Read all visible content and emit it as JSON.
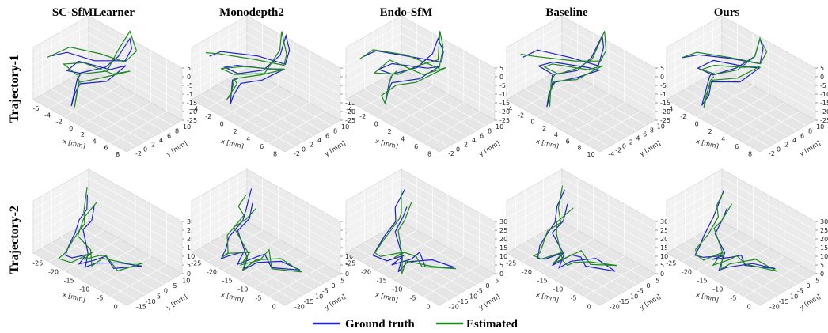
{
  "figure": {
    "column_titles": [
      "SC-SfMLearner",
      "Monodepth2",
      "Endo-SfM",
      "Baseline",
      "Ours"
    ],
    "row_titles": [
      "Trajectory-1",
      "Trajectory-2"
    ]
  },
  "legend": {
    "items": [
      {
        "label": "Ground truth",
        "color": "#1f1fcc"
      },
      {
        "label": "Estimated",
        "color": "#1a8a1a"
      }
    ]
  },
  "chart_data": [
    {
      "type": "line3d",
      "row": "Trajectory-1",
      "column": "SC-SfMLearner",
      "xlabel": "x [mm]",
      "ylabel": "y [mm]",
      "zlabel": "z [mm]",
      "x_ticks": [
        "-6",
        "-4",
        "-2",
        "0",
        "2",
        "4",
        "6",
        "8"
      ],
      "y_ticks": [
        "-2",
        "0",
        "2",
        "4",
        "6",
        "8",
        "10"
      ],
      "z_ticks": [
        "5",
        "0",
        "-5",
        "-10",
        "-15",
        "-20",
        "-25"
      ],
      "xlim": [
        -6,
        8
      ],
      "ylim": [
        -2,
        10
      ],
      "zlim": [
        -25,
        5
      ],
      "series": [
        {
          "name": "Ground truth"
        },
        {
          "name": "Estimated"
        }
      ]
    },
    {
      "type": "line3d",
      "row": "Trajectory-1",
      "column": "Monodepth2",
      "xlabel": "x [mm]",
      "ylabel": "y [mm]",
      "zlabel": "z [mm]",
      "x_ticks": [
        "-4",
        "-2",
        "0",
        "2",
        "4",
        "6",
        "8"
      ],
      "y_ticks": [
        "-2",
        "0",
        "2",
        "4",
        "6",
        "8",
        "10"
      ],
      "z_ticks": [
        "5",
        "0",
        "-5",
        "-10",
        "-15",
        "-20",
        "-25"
      ],
      "xlim": [
        -4,
        8
      ],
      "ylim": [
        -2,
        10
      ],
      "zlim": [
        -25,
        5
      ],
      "series": [
        {
          "name": "Ground truth"
        },
        {
          "name": "Estimated"
        }
      ]
    },
    {
      "type": "line3d",
      "row": "Trajectory-1",
      "column": "Endo-SfM",
      "xlabel": "x [mm]",
      "ylabel": "y [mm]",
      "zlabel": "z [mm]",
      "x_ticks": [
        "-4",
        "-2",
        "0",
        "2",
        "4",
        "6",
        "8"
      ],
      "y_ticks": [
        "-2",
        "0",
        "2",
        "4",
        "6",
        "8",
        "10"
      ],
      "z_ticks": [
        "5",
        "0",
        "-5",
        "-10",
        "-15",
        "-20",
        "-25"
      ],
      "xlim": [
        -4,
        8
      ],
      "ylim": [
        -2,
        10
      ],
      "zlim": [
        -25,
        5
      ],
      "series": [
        {
          "name": "Ground truth"
        },
        {
          "name": "Estimated"
        }
      ]
    },
    {
      "type": "line3d",
      "row": "Trajectory-1",
      "column": "Baseline",
      "xlabel": "x [mm]",
      "ylabel": "y [mm]",
      "zlabel": "z [mm]",
      "x_ticks": [
        "-4",
        "-2",
        "0",
        "2",
        "4",
        "6",
        "8",
        "10"
      ],
      "y_ticks": [
        "-4",
        "-2",
        "0",
        "2",
        "4",
        "6",
        "8",
        "10"
      ],
      "z_ticks": [
        "5",
        "0",
        "-5",
        "-10",
        "-15",
        "-20",
        "-25"
      ],
      "xlim": [
        -4,
        10
      ],
      "ylim": [
        -4,
        10
      ],
      "zlim": [
        -25,
        5
      ],
      "series": [
        {
          "name": "Ground truth"
        },
        {
          "name": "Estimated"
        }
      ]
    },
    {
      "type": "line3d",
      "row": "Trajectory-1",
      "column": "Ours",
      "xlabel": "x [mm]",
      "ylabel": "y [mm]",
      "zlabel": "z [mm]",
      "x_ticks": [
        "-4",
        "-2",
        "0",
        "2",
        "4",
        "6",
        "8"
      ],
      "y_ticks": [
        "-2",
        "0",
        "2",
        "4",
        "6",
        "8",
        "10"
      ],
      "z_ticks": [
        "5",
        "0",
        "-5",
        "-10",
        "-15",
        "-20",
        "-25"
      ],
      "xlim": [
        -4,
        8
      ],
      "ylim": [
        -2,
        10
      ],
      "zlim": [
        -25,
        5
      ],
      "series": [
        {
          "name": "Ground truth"
        },
        {
          "name": "Estimated"
        }
      ]
    },
    {
      "type": "line3d",
      "row": "Trajectory-2",
      "column": "SC-SfMLearner",
      "xlabel": "x [mm]",
      "ylabel": "y [mm]",
      "zlabel": "z [mm]",
      "x_ticks": [
        "-25",
        "-20",
        "-15",
        "-10",
        "-5",
        "0"
      ],
      "y_ticks": [
        "-15",
        "-10",
        "-5",
        "0",
        "5",
        "10"
      ],
      "z_ticks": [
        "30",
        "25",
        "20",
        "15",
        "10",
        "5",
        "0"
      ],
      "xlim": [
        -25,
        0
      ],
      "ylim": [
        -15,
        10
      ],
      "zlim": [
        0,
        30
      ],
      "series": [
        {
          "name": "Ground truth"
        },
        {
          "name": "Estimated"
        }
      ]
    },
    {
      "type": "line3d",
      "row": "Trajectory-2",
      "column": "Monodepth2",
      "xlabel": "x [mm]",
      "ylabel": "y [mm]",
      "zlabel": "z [mm]",
      "x_ticks": [
        "-25",
        "-20",
        "-15",
        "-10",
        "-5",
        "0"
      ],
      "y_ticks": [
        "-20",
        "-15",
        "-10",
        "-5",
        "0",
        "5"
      ],
      "z_ticks": [
        "30",
        "25",
        "20",
        "15",
        "10",
        "5",
        "0"
      ],
      "xlim": [
        -25,
        0
      ],
      "ylim": [
        -20,
        5
      ],
      "zlim": [
        0,
        30
      ],
      "series": [
        {
          "name": "Ground truth"
        },
        {
          "name": "Estimated"
        }
      ]
    },
    {
      "type": "line3d",
      "row": "Trajectory-2",
      "column": "Endo-SfM",
      "xlabel": "x [mm]",
      "ylabel": "y [mm]",
      "zlabel": "z [mm]",
      "x_ticks": [
        "-25",
        "-20",
        "-15",
        "-10",
        "-5",
        "0"
      ],
      "y_ticks": [
        "-20",
        "-15",
        "-10",
        "-5",
        "0",
        "5"
      ],
      "z_ticks": [
        "30",
        "25",
        "20",
        "15",
        "10",
        "5",
        "0"
      ],
      "xlim": [
        -25,
        0
      ],
      "ylim": [
        -20,
        5
      ],
      "zlim": [
        0,
        30
      ],
      "series": [
        {
          "name": "Ground truth"
        },
        {
          "name": "Estimated"
        }
      ]
    },
    {
      "type": "line3d",
      "row": "Trajectory-2",
      "column": "Baseline",
      "xlabel": "x [mm]",
      "ylabel": "y [mm]",
      "zlabel": "z [mm]",
      "x_ticks": [
        "-25",
        "-20",
        "-15",
        "-10",
        "-5",
        "0"
      ],
      "y_ticks": [
        "-20",
        "-15",
        "-10",
        "-5",
        "0",
        "5"
      ],
      "z_ticks": [
        "30",
        "25",
        "20",
        "15",
        "10",
        "5",
        "0"
      ],
      "xlim": [
        -25,
        0
      ],
      "ylim": [
        -20,
        5
      ],
      "zlim": [
        0,
        30
      ],
      "series": [
        {
          "name": "Ground truth"
        },
        {
          "name": "Estimated"
        }
      ]
    },
    {
      "type": "line3d",
      "row": "Trajectory-2",
      "column": "Ours",
      "xlabel": "x [mm]",
      "ylabel": "y [mm]",
      "zlabel": "z [mm]",
      "x_ticks": [
        "-25",
        "-20",
        "-15",
        "-10",
        "-5",
        "0"
      ],
      "y_ticks": [
        "-20",
        "-15",
        "-10",
        "-5",
        "0",
        "5"
      ],
      "z_ticks": [
        "30",
        "25",
        "20",
        "15",
        "10",
        "5",
        "0"
      ],
      "xlim": [
        -25,
        0
      ],
      "ylim": [
        -20,
        5
      ],
      "zlim": [
        0,
        30
      ],
      "series": [
        {
          "name": "Ground truth"
        },
        {
          "name": "Estimated"
        }
      ]
    }
  ]
}
